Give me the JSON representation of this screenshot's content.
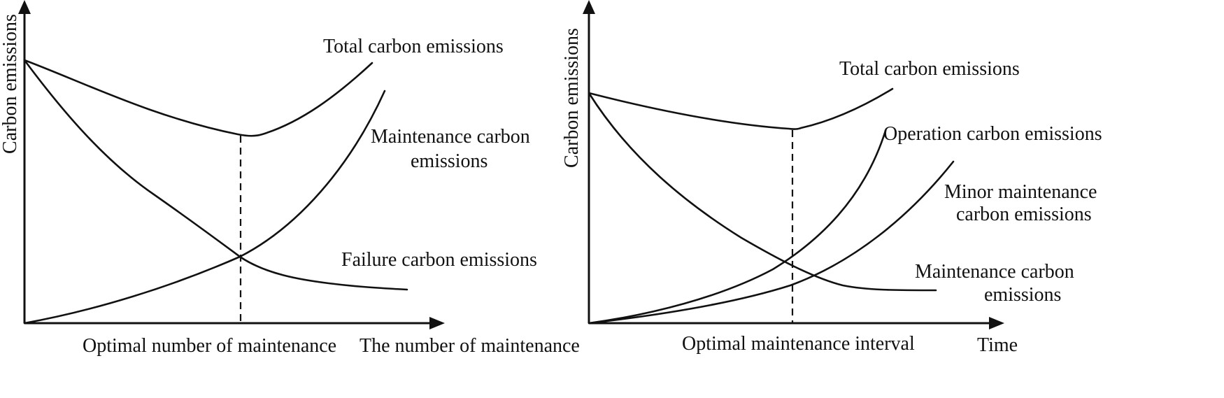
{
  "chart_data": [
    {
      "type": "line",
      "title": "",
      "ylabel": "Carbon emissions",
      "xlabel": "The number of maintenance",
      "x_marker_label": "Optimal number of maintenance",
      "series": [
        {
          "name": "Total carbon emissions",
          "label_lines": [
            "Total carbon emissions"
          ],
          "x": [
            0,
            10,
            20,
            30,
            40,
            50,
            56.8,
            60,
            65,
            70,
            75,
            80,
            85,
            90,
            95,
            100
          ],
          "y": [
            100,
            94,
            88.5,
            84,
            80,
            76.3,
            71,
            71,
            72,
            74.5,
            78,
            83,
            88.5,
            95,
            102,
            100
          ]
        },
        {
          "name": "Maintenance carbon emissions",
          "label_lines": [
            "Maintenance carbon",
            "emissions"
          ],
          "x": [
            0,
            10,
            20,
            30,
            40,
            50,
            56.8,
            60,
            70,
            80,
            90,
            100
          ],
          "y": [
            0,
            2.5,
            6.5,
            12,
            18.5,
            26,
            26,
            30,
            40,
            54,
            72,
            95
          ]
        },
        {
          "name": "Failure carbon emissions",
          "label_lines": [
            "Failure carbon emissions"
          ],
          "x": [
            0,
            10,
            20,
            30,
            40,
            50,
            56.8,
            60,
            70,
            80,
            90,
            100
          ],
          "y": [
            100,
            82,
            67,
            54,
            43.5,
            33,
            26,
            24,
            18.5,
            15,
            13,
            12.5
          ]
        }
      ],
      "optimal_x": 56.8
    },
    {
      "type": "line",
      "title": "",
      "ylabel": "Carbon emissions",
      "xlabel": "Time",
      "x_marker_label": "Optimal maintenance interval",
      "series": [
        {
          "name": "Total carbon emissions",
          "label_lines": [
            "Total carbon emissions"
          ],
          "x": [
            0,
            10,
            20,
            30,
            40,
            50,
            58.5,
            62,
            70,
            80,
            90
          ],
          "y": [
            100,
            96,
            93,
            90.5,
            89,
            88,
            87.5,
            89,
            92,
            99,
            110
          ]
        },
        {
          "name": "Operation carbon emissions",
          "label_lines": [
            "Operation carbon emissions"
          ],
          "x": [
            0,
            10,
            20,
            30,
            40,
            50,
            58.5,
            70,
            80,
            85
          ],
          "y": [
            0,
            2,
            6,
            11.5,
            18,
            24,
            30,
            44,
            66,
            83
          ]
        },
        {
          "name": "Minor maintenance carbon emissions",
          "label_lines": [
            "Minor maintenance",
            "carbon emissions"
          ],
          "x": [
            0,
            10,
            20,
            30,
            40,
            50,
            60,
            70,
            80,
            90,
            100
          ],
          "y": [
            0,
            1.5,
            4,
            7.5,
            11.5,
            16,
            21,
            28,
            38,
            54,
            72
          ]
        },
        {
          "name": "Maintenance carbon emissions",
          "label_lines": [
            "Maintenance carbon",
            "emissions"
          ],
          "x": [
            0,
            10,
            20,
            30,
            40,
            50,
            58.5,
            65,
            70,
            80,
            90,
            100
          ],
          "y": [
            100,
            80,
            64,
            51,
            40,
            30,
            23,
            19,
            17.5,
            15.5,
            14.8,
            14.5
          ]
        }
      ],
      "optimal_x": 58.5
    }
  ]
}
